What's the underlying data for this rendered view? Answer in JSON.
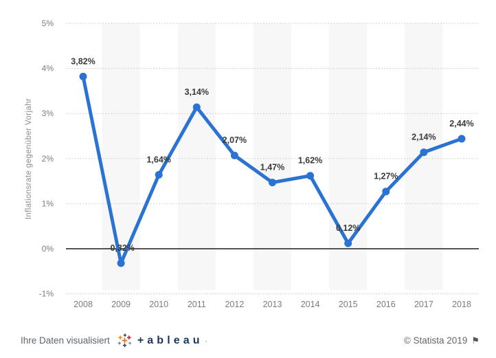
{
  "chart_data": {
    "type": "line",
    "title": "",
    "xlabel": "",
    "ylabel": "Inflationsrate gegenüber Vorjahr",
    "categories": [
      "2008",
      "2009",
      "2010",
      "2011",
      "2012",
      "2013",
      "2014",
      "2015",
      "2016",
      "2017",
      "2018"
    ],
    "values": [
      3.82,
      -0.32,
      1.64,
      3.14,
      2.07,
      1.47,
      1.62,
      0.12,
      1.27,
      2.14,
      2.44
    ],
    "point_labels": [
      "3,82%",
      "-0,32%",
      "1,64%",
      "3,14%",
      "2,07%",
      "1,47%",
      "1,62%",
      "0,12%",
      "1,27%",
      "2,14%",
      "2,44%"
    ],
    "ylim": [
      -1,
      5
    ],
    "ytick_labels": [
      "-1%",
      "0%",
      "1%",
      "2%",
      "3%",
      "4%",
      "5%"
    ],
    "grid": "horizontal dotted lines, solid black zero line",
    "legend_position": "none",
    "banded_categories": [
      "2009",
      "2011",
      "2013",
      "2015",
      "2017"
    ],
    "colors": {
      "line": "#2a73d2",
      "marker": "#2a73d2",
      "band": "#f7f7f7",
      "gridline": "#c4c4c4",
      "zero_line": "#1a1a1a",
      "data_label": "#3a3a3a",
      "tick_label": "#7c7c7c",
      "axis_title": "#8c8c8c"
    }
  },
  "footer": {
    "left_text": "Ihre Daten visualisiert",
    "tableau_wordmark": "+ableau",
    "trademark_dot": "·",
    "copyright": "© Statista 2019",
    "flag_icon": "⚑",
    "tableau_navy": "#1b365d"
  }
}
